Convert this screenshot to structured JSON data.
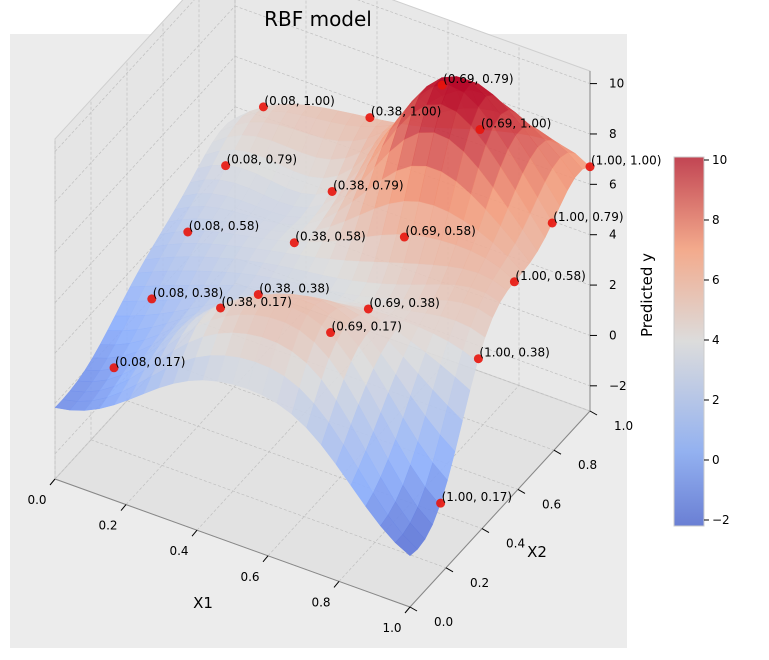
{
  "chart_data": {
    "type": "surface3d",
    "title": "RBF model",
    "xlabel": "X1",
    "ylabel": "X2",
    "zlabel": "Predicted y",
    "xlim": [
      0.0,
      1.0
    ],
    "ylim": [
      0.0,
      1.0
    ],
    "zlim": [
      -3,
      10.5
    ],
    "x_ticks": [
      "0.0",
      "0.2",
      "0.4",
      "0.6",
      "0.8",
      "1.0"
    ],
    "y_ticks": [
      "0.0",
      "0.2",
      "0.4",
      "0.6",
      "0.8",
      "1.0"
    ],
    "z_ticks": [
      "−2",
      "0",
      "2",
      "4",
      "6",
      "8",
      "10"
    ],
    "colormap": "coolwarm",
    "colorbar": {
      "min": -2.2,
      "max": 10.1,
      "ticks": [
        "−2",
        "0",
        "2",
        "4",
        "6",
        "8",
        "10"
      ]
    },
    "colors": {
      "pane": "#ececec",
      "grid": "#bdbdbd",
      "point": "#e8140c",
      "cmap_low": "#3b4cc0",
      "cmap_mid": "#dddddd",
      "cmap_high": "#b40426"
    },
    "points": [
      {
        "x": 0.08,
        "y": 0.17,
        "z": 0.5,
        "label": "(0.08, 0.17)"
      },
      {
        "x": 0.08,
        "y": 0.38,
        "z": 1.6,
        "label": "(0.08, 0.38)"
      },
      {
        "x": 0.08,
        "y": 0.58,
        "z": 2.7,
        "label": "(0.08, 0.58)"
      },
      {
        "x": 0.08,
        "y": 0.79,
        "z": 3.7,
        "label": "(0.08, 0.79)"
      },
      {
        "x": 0.08,
        "y": 1.0,
        "z": 4.4,
        "label": "(0.08, 1.00)"
      },
      {
        "x": 0.38,
        "y": 0.17,
        "z": 4.4,
        "label": "(0.38, 0.17)"
      },
      {
        "x": 0.38,
        "y": 0.38,
        "z": 3.3,
        "label": "(0.38, 0.38)"
      },
      {
        "x": 0.38,
        "y": 0.58,
        "z": 3.8,
        "label": "(0.38, 0.58)"
      },
      {
        "x": 0.38,
        "y": 0.79,
        "z": 4.2,
        "label": "(0.38, 0.79)"
      },
      {
        "x": 0.38,
        "y": 1.0,
        "z": 5.5,
        "label": "(0.38, 1.00)"
      },
      {
        "x": 0.69,
        "y": 0.17,
        "z": 5.0,
        "label": "(0.69, 0.17)"
      },
      {
        "x": 0.69,
        "y": 0.38,
        "z": 4.3,
        "label": "(0.69, 0.38)"
      },
      {
        "x": 0.69,
        "y": 0.58,
        "z": 5.6,
        "label": "(0.69, 0.58)"
      },
      {
        "x": 0.69,
        "y": 0.79,
        "z": 10.0,
        "label": "(0.69, 0.79)"
      },
      {
        "x": 0.69,
        "y": 1.0,
        "z": 6.6,
        "label": "(0.69, 1.00)"
      },
      {
        "x": 1.0,
        "y": 0.17,
        "z": -0.2,
        "label": "(1.00, 0.17)"
      },
      {
        "x": 1.0,
        "y": 0.38,
        "z": 3.9,
        "label": "(1.00, 0.38)"
      },
      {
        "x": 1.0,
        "y": 0.58,
        "z": 5.4,
        "label": "(1.00, 0.58)"
      },
      {
        "x": 1.0,
        "y": 0.79,
        "z": 6.1,
        "label": "(1.00, 0.79)"
      },
      {
        "x": 1.0,
        "y": 1.0,
        "z": 6.7,
        "label": "(1.00, 1.00)"
      }
    ]
  }
}
